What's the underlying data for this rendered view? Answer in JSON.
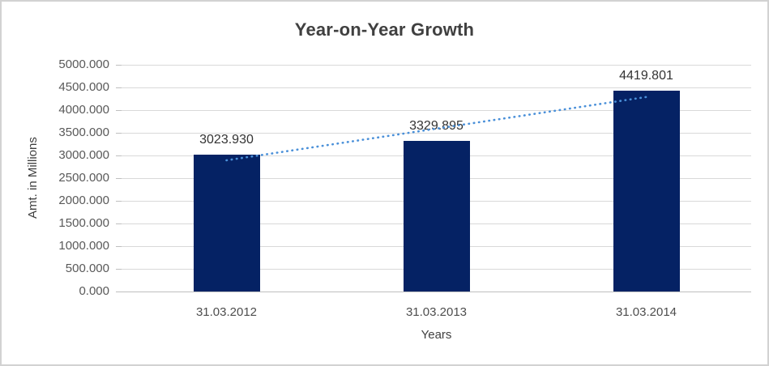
{
  "window": {
    "background_color": "#ffffff",
    "border_color": "#d2d2d2"
  },
  "chart_data": {
    "type": "bar",
    "title": "Year-on-Year Growth",
    "xlabel": "Years",
    "ylabel": "Amt. in Millions",
    "categories": [
      "31.03.2012",
      "31.03.2013",
      "31.03.2014"
    ],
    "values": [
      3023.93,
      3329.895,
      4419.801
    ],
    "data_labels": [
      "3023.930",
      "3329.895",
      "4419.801"
    ],
    "ylim": [
      0,
      5000
    ],
    "y_tick_step": 500,
    "y_tick_labels": [
      "0.000",
      "500.000",
      "1000.000",
      "1500.000",
      "2000.000",
      "2500.000",
      "3000.000",
      "3500.000",
      "4000.000",
      "4500.000",
      "5000.000"
    ],
    "grid": true,
    "legend": "none",
    "bar_color": "#052264",
    "gridline_color": "#d9d9d9",
    "trendline": {
      "type": "linear",
      "style": "dotted",
      "color": "#4a90d9",
      "start_value": 2893.3,
      "end_value": 4289.1
    }
  }
}
